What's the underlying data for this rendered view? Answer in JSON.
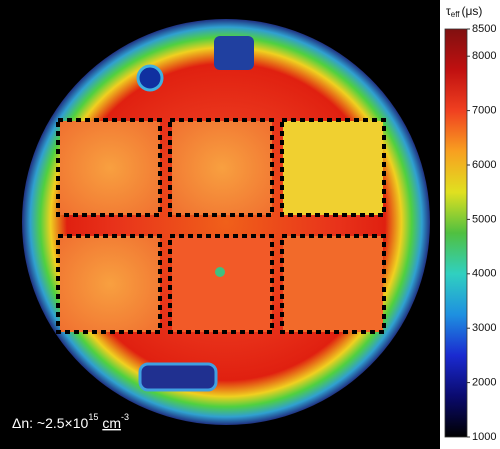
{
  "chart_data": {
    "type": "heatmap",
    "colorbar_label": {
      "symbol": "τ",
      "subscript": "eff",
      "unit": "(μs)"
    },
    "annotation": {
      "prefix": "Δn:  ~2.5×10",
      "exponent": "15",
      "unit": "cm",
      "unit_exponent": "-3"
    },
    "colormap": "jet",
    "zlim": [
      1000,
      8500
    ],
    "zticks": [
      1000,
      2000,
      3000,
      4000,
      5000,
      6000,
      7000,
      8000,
      8500
    ]
  }
}
